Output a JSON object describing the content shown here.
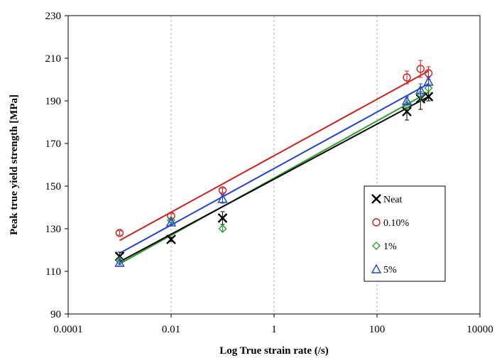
{
  "chart_data": {
    "type": "scatter",
    "title": "",
    "xlabel": "Log True strain rate (/s)",
    "ylabel": "Peak true yield strength [MPa]",
    "xscale": "log",
    "xlim": [
      0.0001,
      10000
    ],
    "ylim": [
      90,
      230
    ],
    "xticks": [
      "0.0001",
      "0.01",
      "1",
      "100",
      "10000"
    ],
    "yticks": [
      "90",
      "110",
      "130",
      "150",
      "170",
      "190",
      "210",
      "230"
    ],
    "grid": "vertical dashed",
    "legend_position": "right-center",
    "series": [
      {
        "name": "Neat",
        "marker": "x",
        "color": "#000000",
        "points": [
          {
            "x": 0.001,
            "y": 117,
            "err": 2
          },
          {
            "x": 0.01,
            "y": 125,
            "err": 1
          },
          {
            "x": 0.1,
            "y": 135,
            "err": 3
          },
          {
            "x": 380,
            "y": 185,
            "err": 4
          },
          {
            "x": 700,
            "y": 191,
            "err": 5
          },
          {
            "x": 1000,
            "y": 192,
            "err": 2
          }
        ],
        "fit": {
          "x": [
            0.001,
            1000
          ],
          "y": [
            114.5,
            192
          ]
        }
      },
      {
        "name": "0.10%",
        "marker": "o",
        "color": "#cc2222",
        "points": [
          {
            "x": 0.001,
            "y": 128,
            "err": 1
          },
          {
            "x": 0.01,
            "y": 136,
            "err": 1
          },
          {
            "x": 0.1,
            "y": 148,
            "err": 1
          },
          {
            "x": 380,
            "y": 201,
            "err": 3
          },
          {
            "x": 700,
            "y": 205,
            "err": 4
          },
          {
            "x": 1000,
            "y": 203,
            "err": 3
          }
        ],
        "fit": {
          "x": [
            0.001,
            1000
          ],
          "y": [
            124.5,
            204
          ]
        }
      },
      {
        "name": "1%",
        "marker": "diamond",
        "color": "#2e9e2e",
        "points": [
          {
            "x": 0.001,
            "y": 115,
            "err": 1
          },
          {
            "x": 0.01,
            "y": 134,
            "err": 1
          },
          {
            "x": 0.1,
            "y": 130,
            "err": 1
          },
          {
            "x": 380,
            "y": 188,
            "err": 2
          },
          {
            "x": 700,
            "y": 193,
            "err": 3
          },
          {
            "x": 1000,
            "y": 196,
            "err": 2
          }
        ],
        "fit": {
          "x": [
            0.001,
            1000
          ],
          "y": [
            113.5,
            194
          ]
        }
      },
      {
        "name": "5%",
        "marker": "triangle",
        "color": "#2244cc",
        "points": [
          {
            "x": 0.001,
            "y": 114,
            "err": 1
          },
          {
            "x": 0.01,
            "y": 133,
            "err": 1
          },
          {
            "x": 0.1,
            "y": 144,
            "err": 2
          },
          {
            "x": 380,
            "y": 190,
            "err": 2
          },
          {
            "x": 700,
            "y": 195,
            "err": 3
          },
          {
            "x": 1000,
            "y": 199,
            "err": 2
          }
        ],
        "fit": {
          "x": [
            0.001,
            1000
          ],
          "y": [
            118.5,
            198
          ]
        }
      }
    ]
  }
}
